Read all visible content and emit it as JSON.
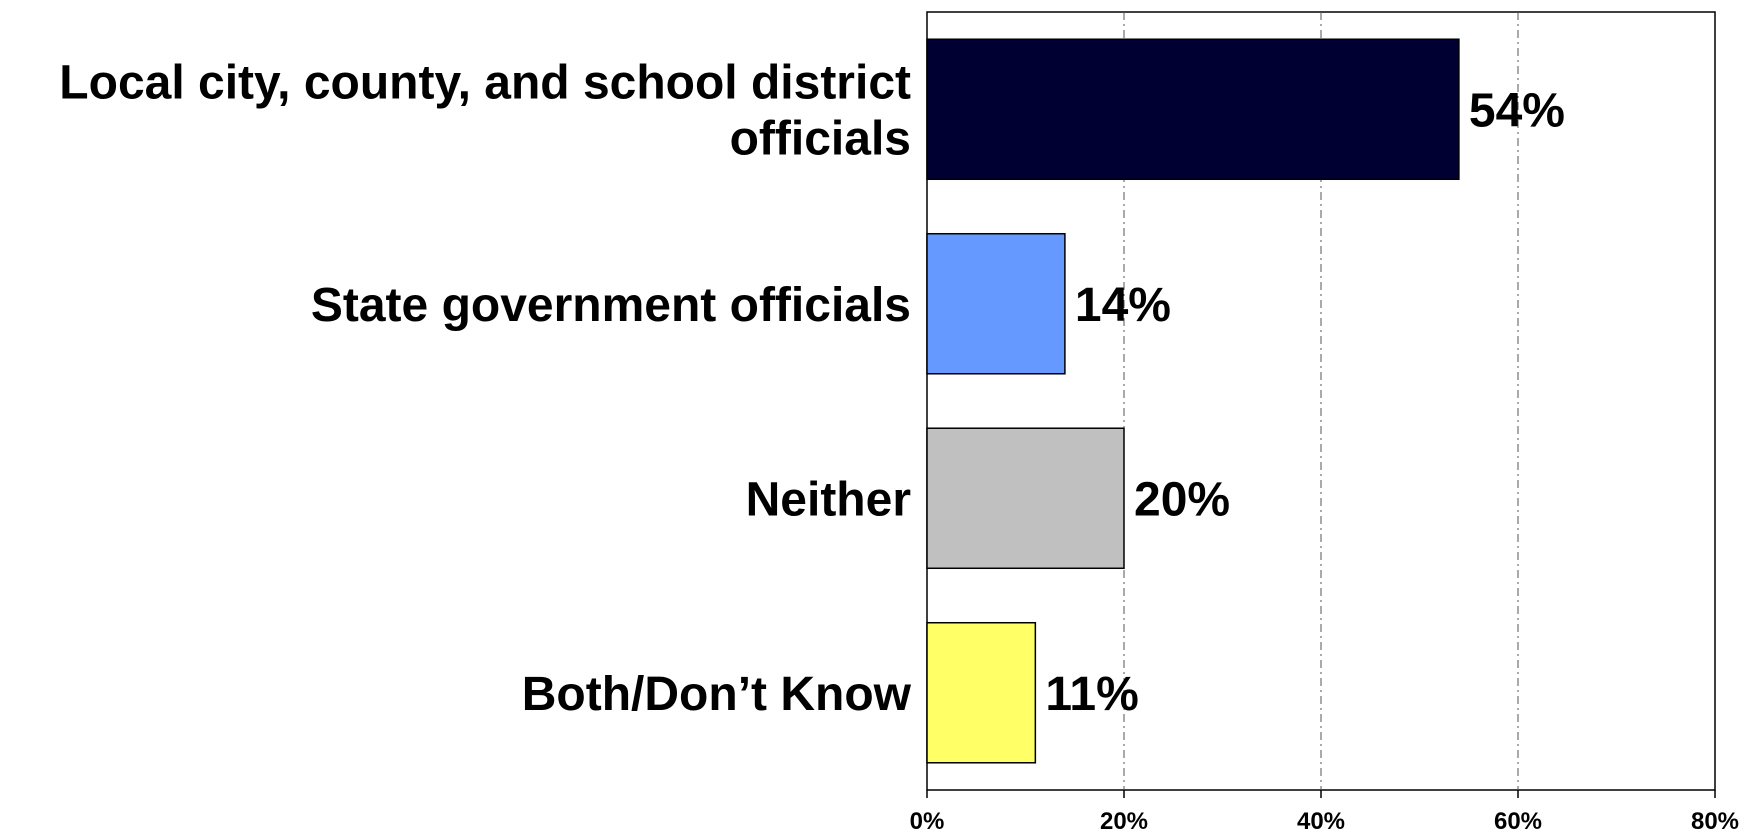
{
  "chart_data": {
    "type": "bar",
    "orientation": "horizontal",
    "title": "",
    "xlabel": "",
    "ylabel": "",
    "categories": [
      [
        "Local city, county, and school district",
        "officials"
      ],
      [
        "State government officials"
      ],
      [
        "Neither"
      ],
      [
        "Both/Don’t Know"
      ]
    ],
    "values": [
      54,
      14,
      20,
      11
    ],
    "value_labels": [
      "54%",
      "14%",
      "20%",
      "11%"
    ],
    "bar_colors": [
      "#000033",
      "#6699FF",
      "#C0C0C0",
      "#FFFF66"
    ],
    "xlim": [
      0,
      80
    ],
    "xticks": [
      0,
      20,
      40,
      60,
      80
    ],
    "xtick_labels": [
      "0%",
      "20%",
      "40%",
      "60%",
      "80%"
    ],
    "grid": "vertical-dash-dot",
    "legend": "none"
  }
}
